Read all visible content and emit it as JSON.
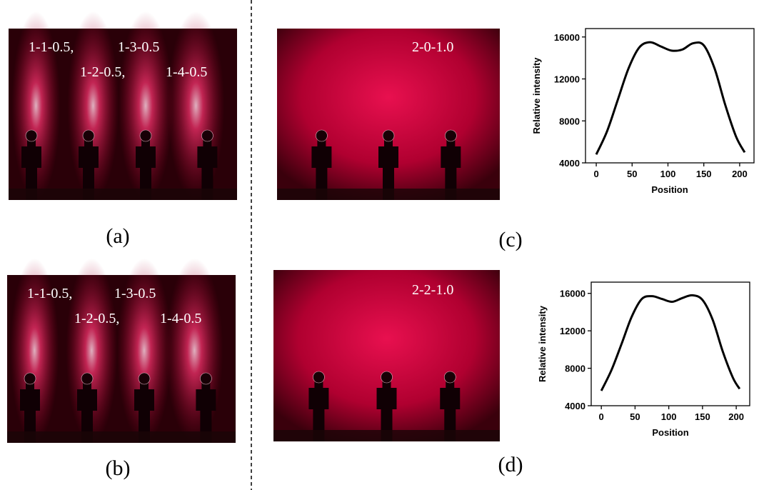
{
  "panels": [
    {
      "label": "(a)",
      "texts": [
        "1-1-0.5,",
        "1-3-0.5",
        "1-2-0.5,",
        "1-4-0.5"
      ]
    },
    {
      "label": "(b)",
      "texts": [
        "1-1-0.5,",
        "1-3-0.5",
        "1-2-0.5,",
        "1-4-0.5"
      ]
    },
    {
      "label": "(c)",
      "texts": [
        "2-0-1.0"
      ]
    },
    {
      "label": "(d)",
      "texts": [
        "2-2-1.0"
      ]
    }
  ],
  "chart_data": [
    {
      "type": "line",
      "x_label": "Position",
      "y_label": "Relative intensity",
      "x": [
        0,
        15,
        30,
        45,
        60,
        75,
        90,
        105,
        120,
        135,
        150,
        165,
        180,
        195,
        207
      ],
      "series": [
        {
          "color": "#000000",
          "values": [
            4800,
            7000,
            10000,
            13000,
            15000,
            15500,
            15100,
            14700,
            14800,
            15400,
            15200,
            13000,
            9500,
            6500,
            5000
          ]
        }
      ],
      "xlim": [
        -15,
        220
      ],
      "ylim": [
        4000,
        16800
      ],
      "xticks": [
        0,
        50,
        100,
        150,
        200
      ],
      "yticks": [
        4000,
        8000,
        12000,
        16000
      ]
    },
    {
      "type": "line",
      "x_label": "Position",
      "y_label": "Relative intensity",
      "x": [
        0,
        15,
        30,
        45,
        60,
        75,
        90,
        105,
        120,
        135,
        150,
        165,
        180,
        195,
        205
      ],
      "series": [
        {
          "color": "#000000",
          "values": [
            5600,
            7800,
            10600,
            13500,
            15400,
            15700,
            15400,
            15100,
            15500,
            15800,
            15300,
            13200,
            9800,
            7000,
            5800
          ]
        }
      ],
      "xlim": [
        -15,
        220
      ],
      "ylim": [
        4000,
        17200
      ],
      "xticks": [
        0,
        50,
        100,
        150,
        200
      ],
      "yticks": [
        4000,
        8000,
        12000,
        16000
      ]
    }
  ]
}
